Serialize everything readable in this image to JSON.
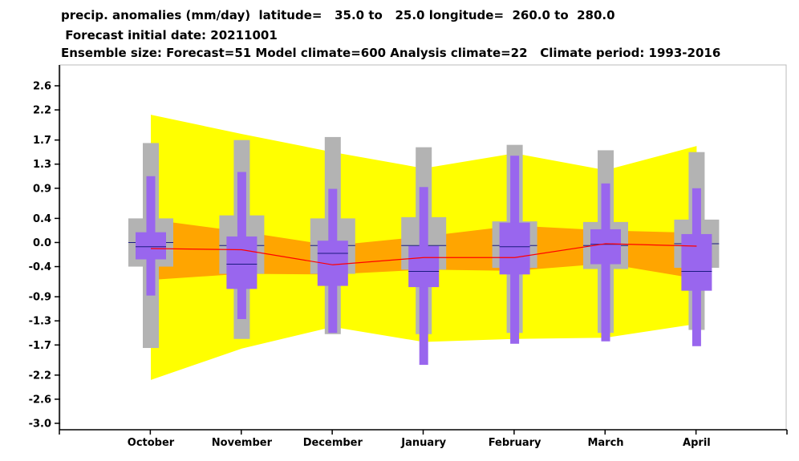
{
  "title": {
    "line1": "precip. anomalies (mm/day)  latitude=   35.0 to   25.0 longitude=  260.0 to  280.0",
    "line2": " Forecast initial date: 20211001",
    "line3": "Ensemble size: Forecast=51 Model climate=600 Analysis climate=22   Climate period: 1993-2016"
  },
  "chart_data": {
    "type": "box",
    "categories": [
      "October",
      "November",
      "December",
      "January",
      "February",
      "March",
      "April"
    ],
    "y_tick_labels": [
      "2.6",
      "2.2",
      "1.7",
      "1.3",
      "0.9",
      "0.4",
      "0.0",
      "-0.4",
      "-0.9",
      "-1.3",
      "-1.7",
      "-2.2",
      "-2.6",
      "-3.0"
    ],
    "y_tick_values": [
      2.6,
      2.2,
      1.7,
      1.3,
      0.9,
      0.4,
      0.0,
      -0.4,
      -0.9,
      -1.3,
      -1.7,
      -2.2,
      -2.6,
      -3.0
    ],
    "ylim": [
      -3.05,
      2.8
    ],
    "model_climate": {
      "color": "#b3b3b3",
      "min": [
        -1.75,
        -1.6,
        -1.52,
        -1.52,
        -1.5,
        -1.5,
        -1.45
      ],
      "p10": [
        -0.4,
        -0.52,
        -0.52,
        -0.45,
        -0.42,
        -0.44,
        -0.42
      ],
      "median": [
        0.0,
        -0.05,
        -0.05,
        -0.05,
        -0.05,
        -0.05,
        -0.02
      ],
      "p90": [
        0.4,
        0.45,
        0.4,
        0.42,
        0.35,
        0.34,
        0.38
      ],
      "max": [
        1.65,
        1.7,
        1.75,
        1.58,
        1.62,
        1.53,
        1.5
      ]
    },
    "forecast": {
      "color": "#9966ee",
      "min": [
        -0.88,
        -1.27,
        -1.5,
        -2.03,
        -1.68,
        -1.64,
        -1.72
      ],
      "p25": [
        -0.28,
        -0.77,
        -0.72,
        -0.74,
        -0.53,
        -0.36,
        -0.8
      ],
      "median": [
        -0.07,
        -0.36,
        -0.18,
        -0.48,
        -0.07,
        -0.03,
        -0.48
      ],
      "p75": [
        0.17,
        0.1,
        0.03,
        -0.06,
        0.33,
        0.22,
        0.14
      ],
      "max": [
        1.1,
        1.17,
        0.89,
        0.92,
        1.44,
        0.98,
        0.9
      ]
    },
    "analysis_climate": {
      "line_color": "#ff0000",
      "inner_color": "#ffa500",
      "outer_color": "#ffff00",
      "mean": [
        -0.1,
        -0.12,
        -0.37,
        -0.25,
        -0.25,
        -0.02,
        -0.06
      ],
      "inner_low": [
        -0.62,
        -0.52,
        -0.53,
        -0.45,
        -0.47,
        -0.35,
        -0.6
      ],
      "inner_high": [
        0.38,
        0.18,
        -0.05,
        0.1,
        0.28,
        0.2,
        0.16
      ],
      "outer_low": [
        -2.28,
        -1.76,
        -1.4,
        -1.65,
        -1.6,
        -1.58,
        -1.35
      ],
      "outer_high": [
        2.12,
        1.8,
        1.5,
        1.23,
        1.48,
        1.2,
        1.6
      ]
    }
  }
}
